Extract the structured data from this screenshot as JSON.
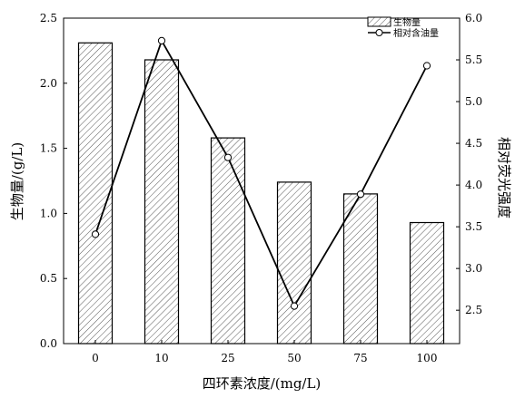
{
  "chart_data": {
    "type": "bar",
    "categories": [
      "0",
      "10",
      "25",
      "50",
      "75",
      "100"
    ],
    "series": [
      {
        "name": "生物量",
        "type": "bar",
        "axis": "left",
        "values": [
          2.31,
          2.18,
          1.58,
          1.24,
          1.15,
          0.93
        ]
      },
      {
        "name": "相对含油量",
        "type": "line",
        "axis": "right",
        "values": [
          3.41,
          5.73,
          4.33,
          2.55,
          3.89,
          5.43
        ]
      }
    ],
    "xlabel": "四环素浓度/(mg/L)",
    "ylabel": "生物量/(g/L)",
    "y2label": "相对荧光强度",
    "ylim": [
      0,
      2.5
    ],
    "y2lim": [
      2.1,
      6.0
    ],
    "yticks": [
      "0.0",
      "0.5",
      "1.0",
      "1.5",
      "2.0",
      "2.5"
    ],
    "y2ticks": [
      "2.5",
      "3.0",
      "3.5",
      "4.0",
      "4.5",
      "5.0",
      "5.5",
      "6.0"
    ],
    "grid": false,
    "legend_position": "top-right",
    "bar_fill": "hatched",
    "colors": {
      "axis": "#000000",
      "bar_edge": "#000000",
      "hatch": "#555555",
      "line": "#000000",
      "marker_fill": "#ffffff"
    }
  }
}
